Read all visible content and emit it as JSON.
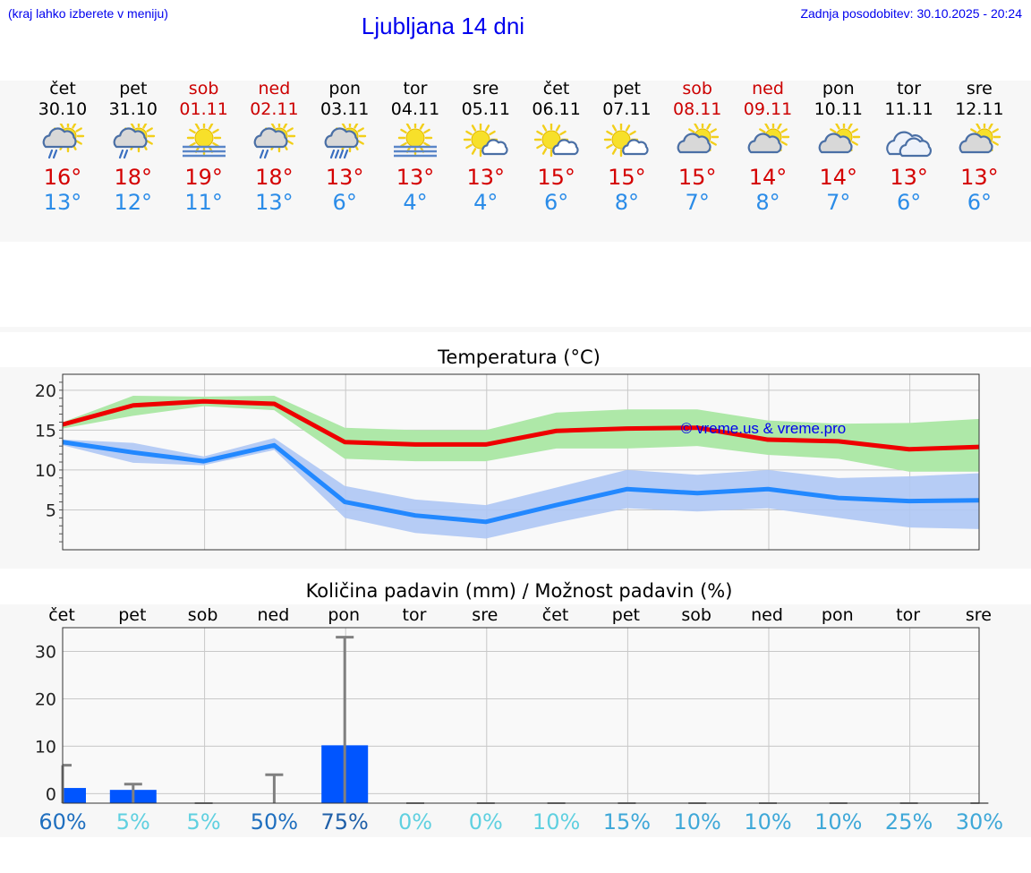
{
  "header": {
    "menu_hint": "(kraj lahko izberete v meniju)",
    "title": "Ljubljana 14 dni",
    "updated": "Zadnja posodobitev: 30.10.2025 - 20:24"
  },
  "days": [
    {
      "name": "čet",
      "date": "30.10",
      "weekend": false,
      "icon": "sun-cloud-rain-icon",
      "max": "16°",
      "min": "13°"
    },
    {
      "name": "pet",
      "date": "31.10",
      "weekend": false,
      "icon": "sun-cloud-rain-icon",
      "max": "18°",
      "min": "12°"
    },
    {
      "name": "sob",
      "date": "01.11",
      "weekend": true,
      "icon": "sun-fog-icon",
      "max": "19°",
      "min": "11°"
    },
    {
      "name": "ned",
      "date": "02.11",
      "weekend": true,
      "icon": "sun-cloud-rain-icon",
      "max": "18°",
      "min": "13°"
    },
    {
      "name": "pon",
      "date": "03.11",
      "weekend": false,
      "icon": "sun-cloud-heavy-rain-icon",
      "max": "13°",
      "min": "6°"
    },
    {
      "name": "tor",
      "date": "04.11",
      "weekend": false,
      "icon": "sun-fog-icon",
      "max": "13°",
      "min": "4°"
    },
    {
      "name": "sre",
      "date": "05.11",
      "weekend": false,
      "icon": "sun-small-cloud-icon",
      "max": "13°",
      "min": "4°"
    },
    {
      "name": "čet",
      "date": "06.11",
      "weekend": false,
      "icon": "sun-small-cloud-icon",
      "max": "15°",
      "min": "6°"
    },
    {
      "name": "pet",
      "date": "07.11",
      "weekend": false,
      "icon": "sun-small-cloud-icon",
      "max": "15°",
      "min": "8°"
    },
    {
      "name": "sob",
      "date": "08.11",
      "weekend": true,
      "icon": "sun-cloud-icon",
      "max": "15°",
      "min": "7°"
    },
    {
      "name": "ned",
      "date": "09.11",
      "weekend": true,
      "icon": "sun-cloud-icon",
      "max": "14°",
      "min": "8°"
    },
    {
      "name": "pon",
      "date": "10.11",
      "weekend": false,
      "icon": "sun-cloud-icon",
      "max": "14°",
      "min": "7°"
    },
    {
      "name": "tor",
      "date": "11.11",
      "weekend": false,
      "icon": "cloud-icon",
      "max": "13°",
      "min": "6°"
    },
    {
      "name": "sre",
      "date": "12.11",
      "weekend": false,
      "icon": "sun-cloud-icon",
      "max": "13°",
      "min": "6°"
    }
  ],
  "colors": {
    "max_line": "#ee0000",
    "max_band": "#aee8a8",
    "min_line": "#2288ff",
    "min_band": "#aec6f4",
    "bar": "#0055ff",
    "whisker": "#808080",
    "weekend_text": "#cc0000",
    "max_text": "#d40000",
    "min_text": "#2b8ce8"
  },
  "chart_data": [
    {
      "type": "line",
      "title": "Temperatura (°C)",
      "watermark": "© vreme.us & vreme.pro",
      "x": [
        "30.10",
        "31.10",
        "01.11",
        "02.11",
        "03.11",
        "04.11",
        "05.11",
        "06.11",
        "07.11",
        "08.11",
        "09.11",
        "10.11",
        "11.11",
        "12.11"
      ],
      "ylim": [
        0,
        22
      ],
      "yticks": [
        5,
        10,
        15,
        20
      ],
      "grid": true,
      "series": [
        {
          "values": [
            15.7,
            18.1,
            18.6,
            18.3,
            13.5,
            13.2,
            13.2,
            14.9,
            15.2,
            15.3,
            13.8,
            13.6,
            12.6,
            12.9
          ],
          "band_low": [
            15.2,
            16.8,
            18.0,
            17.5,
            11.4,
            11.1,
            11.1,
            12.7,
            12.7,
            13.0,
            11.9,
            11.4,
            9.8,
            9.8
          ],
          "band_high": [
            16.0,
            19.3,
            19.2,
            19.3,
            15.3,
            15.0,
            15.0,
            17.2,
            17.6,
            17.6,
            16.2,
            15.8,
            15.9,
            16.4
          ]
        },
        {
          "values": [
            13.5,
            12.2,
            11.1,
            13.1,
            6.0,
            4.3,
            3.5,
            5.6,
            7.6,
            7.1,
            7.6,
            6.5,
            6.1,
            6.2
          ],
          "band_low": [
            13.1,
            10.9,
            10.6,
            12.5,
            4.0,
            2.1,
            1.4,
            3.4,
            5.2,
            4.8,
            5.2,
            4.0,
            2.8,
            2.6
          ],
          "band_high": [
            13.8,
            13.4,
            11.7,
            14.0,
            8.0,
            6.3,
            5.6,
            7.8,
            10.0,
            9.4,
            10.0,
            9.0,
            9.2,
            9.6
          ]
        }
      ]
    },
    {
      "type": "bar",
      "title": "Količina padavin (mm) / Možnost padavin (%)",
      "categories": [
        "čet",
        "pet",
        "sob",
        "ned",
        "pon",
        "tor",
        "sre",
        "čet",
        "pet",
        "sob",
        "ned",
        "pon",
        "tor",
        "sre"
      ],
      "ylim": [
        -2,
        35
      ],
      "yticks": [
        0,
        10,
        20,
        30
      ],
      "grid": true,
      "values": [
        1.2,
        0.8,
        0,
        0,
        10.2,
        0,
        0,
        0,
        0,
        0,
        0,
        0,
        0,
        0
      ],
      "max": [
        6,
        2,
        0,
        4,
        33,
        0,
        0,
        0,
        0,
        0,
        0,
        0,
        0,
        0
      ],
      "probability": [
        "60%",
        "5%",
        "5%",
        "50%",
        "75%",
        "0%",
        "0%",
        "10%",
        "15%",
        "10%",
        "10%",
        "10%",
        "25%",
        "30%"
      ],
      "probability_colors": [
        "#1f6fbf",
        "#5fd0e0",
        "#5fd0e0",
        "#1f6fbf",
        "#1f5fa8",
        "#5fd0e0",
        "#5fd0e0",
        "#5fd0e0",
        "#3fa8d8",
        "#3fa8d8",
        "#3fa8d8",
        "#3fa8d8",
        "#3fa8d8",
        "#3fa8d8"
      ]
    }
  ]
}
